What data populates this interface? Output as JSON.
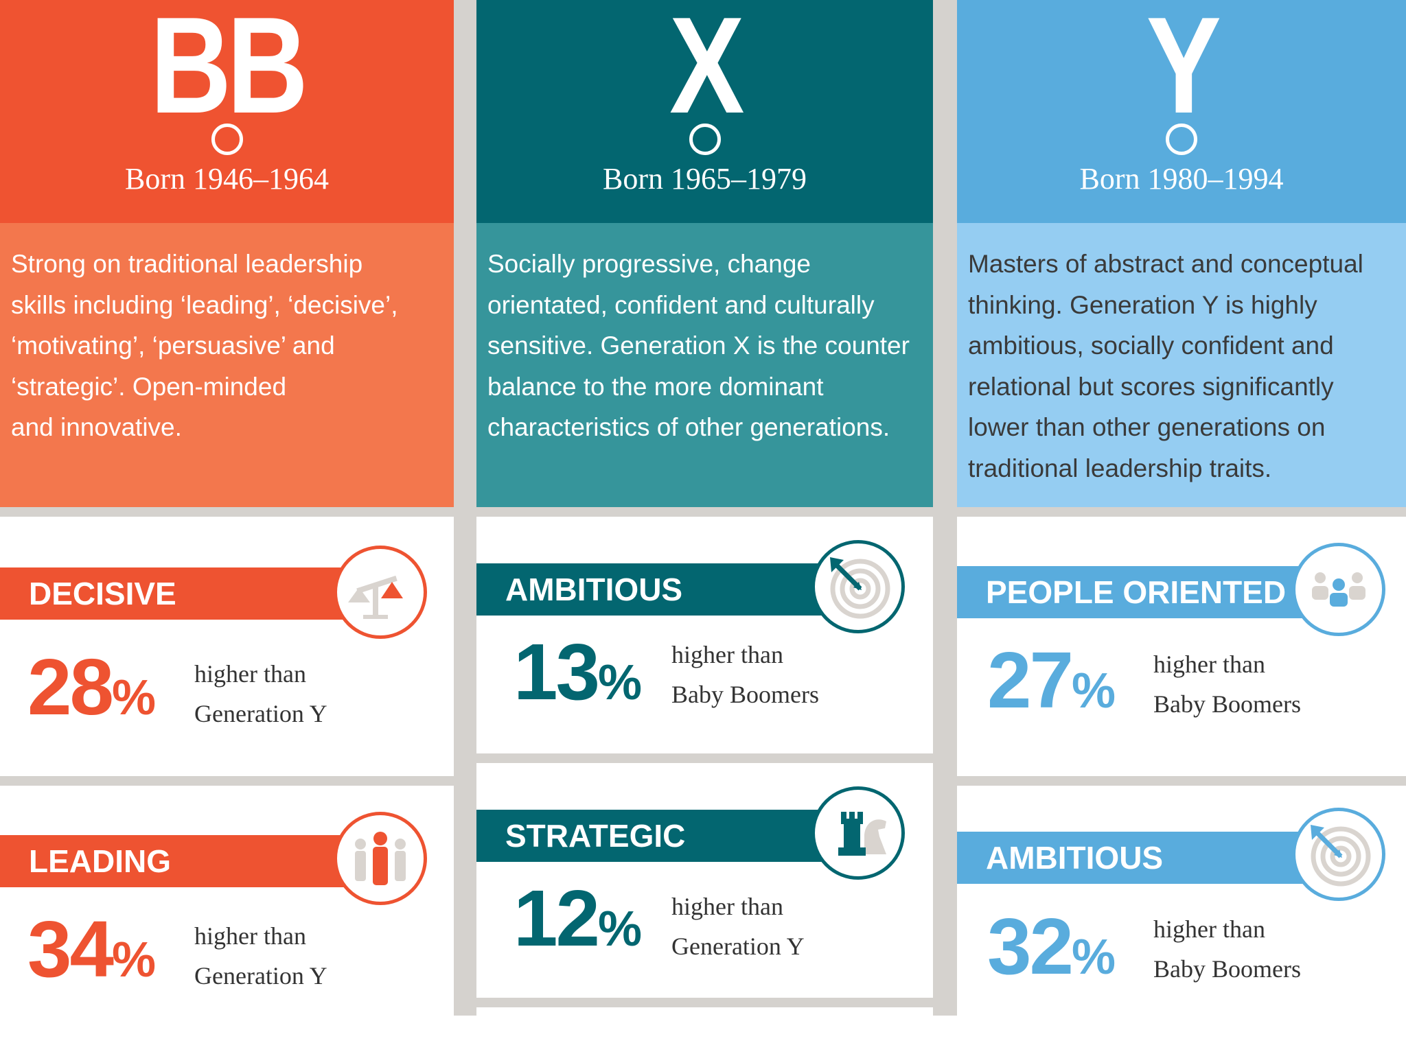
{
  "colors": {
    "bb_header": "#ef5331",
    "bb_body": "#f3774d",
    "x_header": "#036670",
    "x_body": "#36959b",
    "y_header": "#59acdd",
    "y_body": "#95cdf2",
    "gutter": "#d5d2ce"
  },
  "columns": [
    {
      "letter": "BB",
      "born": "Born 1946–1964",
      "description": [
        "Strong on traditional leadership",
        "skills including ‘leading’, ‘decisive’,",
        "‘motivating’, ‘persuasive’ and",
        "‘strategic’. Open-minded",
        "and innovative."
      ],
      "traits": [
        {
          "label": "DECISIVE",
          "icon": "scales-icon",
          "value": "28",
          "unit": "%",
          "compare_1": "higher than",
          "compare_2": "Generation Y"
        },
        {
          "label": "LEADING",
          "icon": "people-leader-icon",
          "value": "34",
          "unit": "%",
          "compare_1": "higher than",
          "compare_2": "Generation Y"
        }
      ]
    },
    {
      "letter": "X",
      "born": "Born 1965–1979",
      "description": [
        "Socially progressive, change",
        "orientated, confident and culturally",
        "sensitive. Generation X is the counter",
        "balance to the more dominant",
        "characteristics of other generations."
      ],
      "traits": [
        {
          "label": "AMBITIOUS",
          "icon": "target-arrow-icon",
          "value": "13",
          "unit": "%",
          "compare_1": "higher than",
          "compare_2": "Baby Boomers"
        },
        {
          "label": "STRATEGIC",
          "icon": "chess-icon",
          "value": "12",
          "unit": "%",
          "compare_1": "higher than",
          "compare_2": "Generation Y"
        }
      ]
    },
    {
      "letter": "Y",
      "born": "Born 1980–1994",
      "description": [
        "Masters of abstract and conceptual",
        "thinking. Generation Y is highly",
        "ambitious, socially confident and",
        "relational but scores significantly",
        "lower than other generations on",
        "traditional leadership traits."
      ],
      "traits": [
        {
          "label": "PEOPLE ORIENTED",
          "icon": "group-icon",
          "value": "27",
          "unit": "%",
          "compare_1": "higher than",
          "compare_2": "Baby Boomers"
        },
        {
          "label": "AMBITIOUS",
          "icon": "target-arrow-icon",
          "value": "32",
          "unit": "%",
          "compare_1": "higher than",
          "compare_2": "Baby Boomers"
        }
      ]
    }
  ]
}
